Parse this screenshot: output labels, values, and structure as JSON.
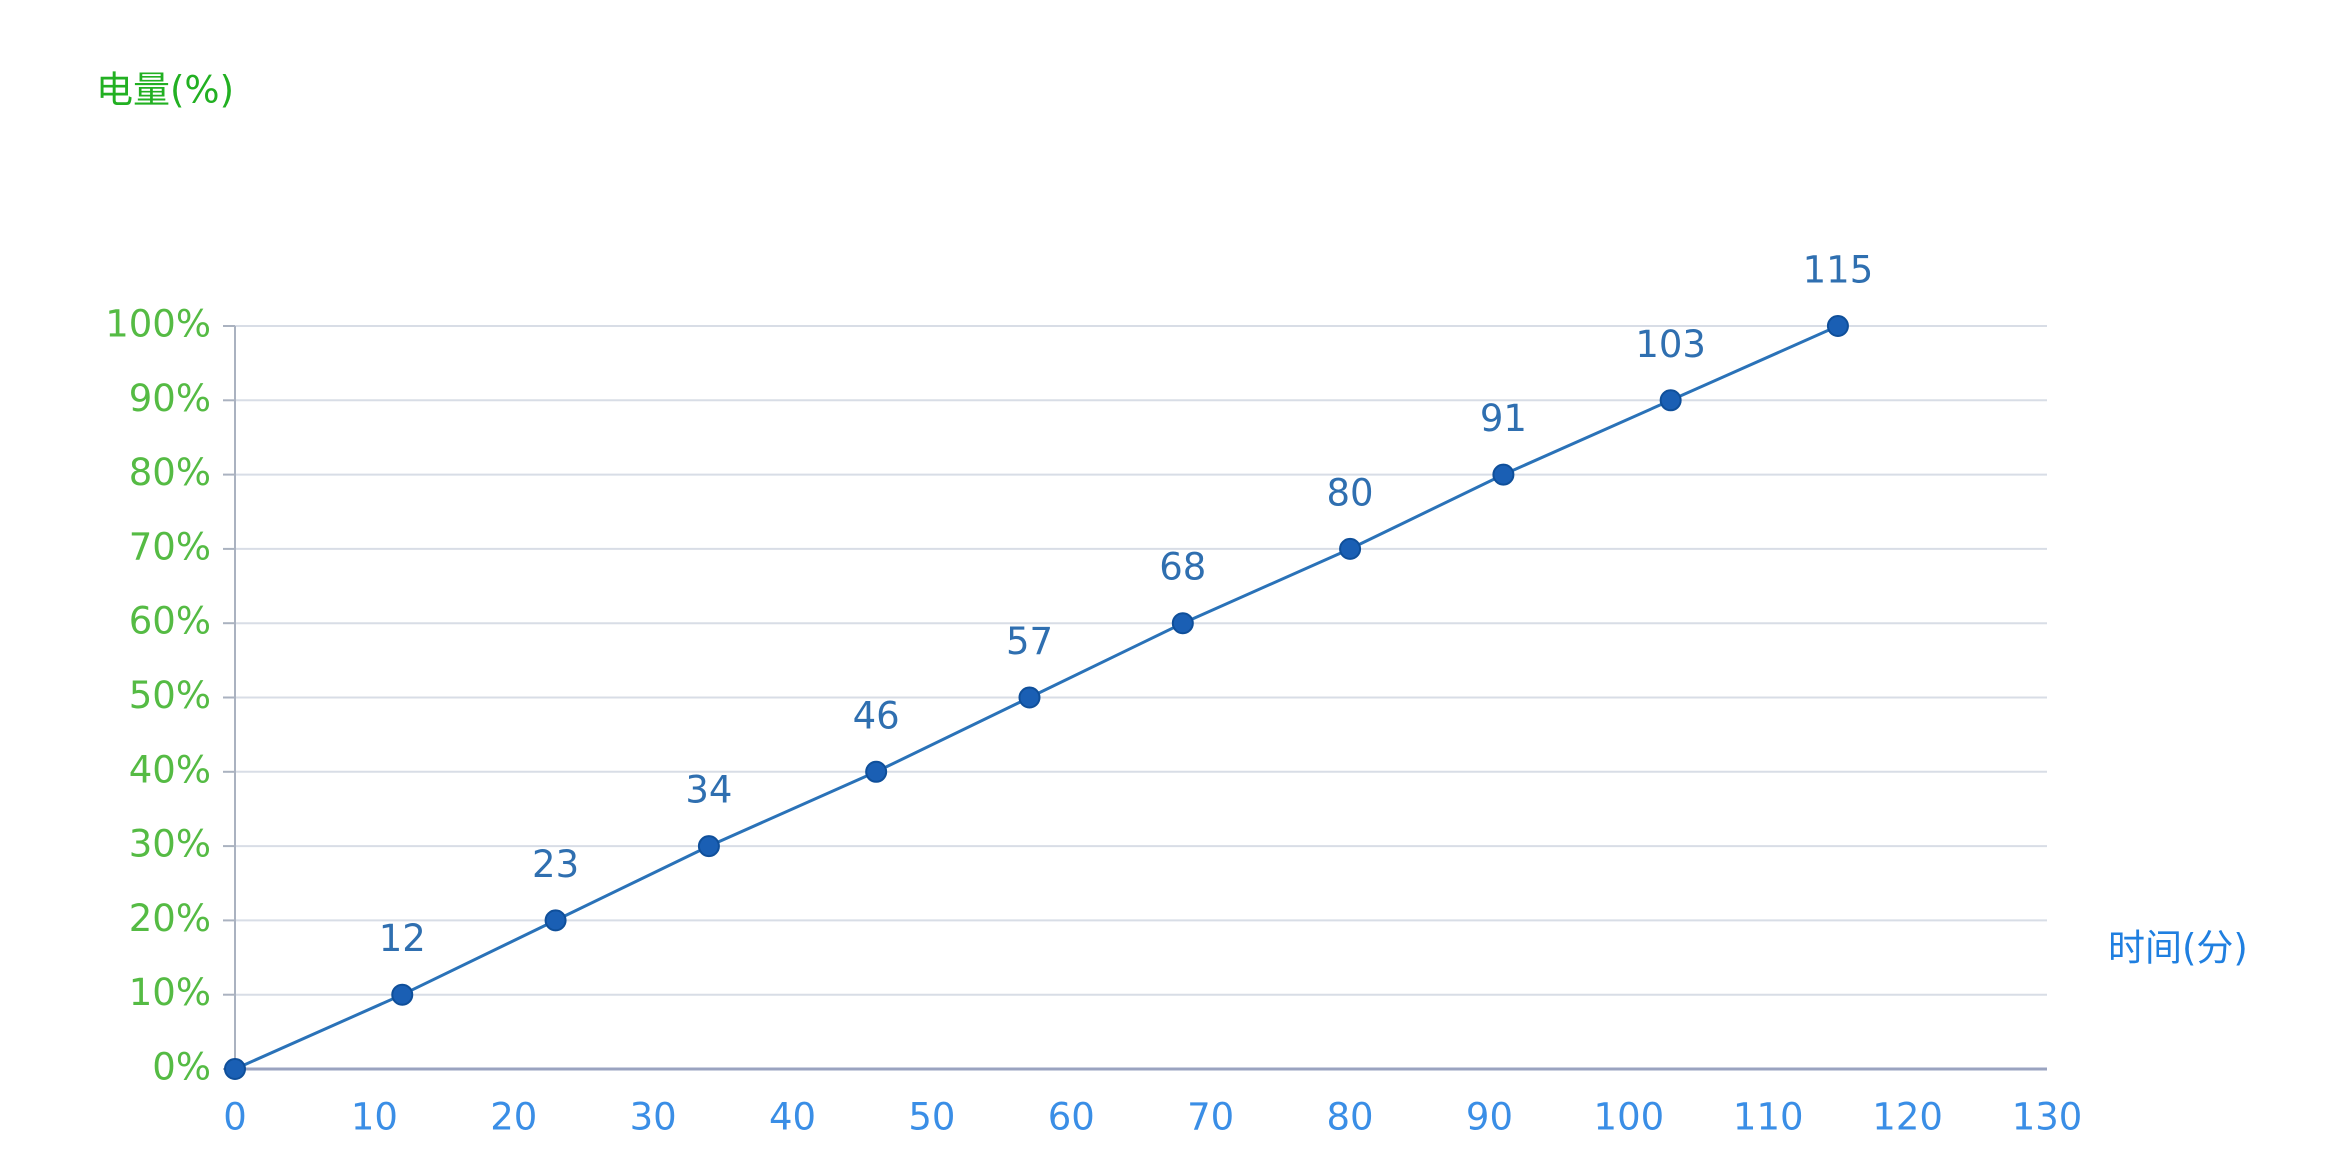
{
  "chart_data": {
    "type": "line",
    "y_axis_title": "电量(%)",
    "x_axis_title": "时间(分)",
    "x": [
      0,
      12,
      23,
      34,
      46,
      57,
      68,
      80,
      91,
      103,
      115
    ],
    "series": [
      {
        "color": "#2a72b8",
        "marker_color": "#1a5fb4",
        "values": [
          0,
          10,
          20,
          30,
          40,
          50,
          60,
          70,
          80,
          90,
          100
        ]
      }
    ],
    "data_labels": [
      null,
      12,
      23,
      34,
      46,
      57,
      68,
      80,
      91,
      103,
      115
    ],
    "xlim": [
      0,
      130
    ],
    "xticks": [
      0,
      10,
      20,
      30,
      40,
      50,
      60,
      70,
      80,
      90,
      100,
      110,
      120,
      130
    ],
    "ylim": [
      0,
      100
    ],
    "yticks": [
      {
        "value": 0,
        "label": "0%"
      },
      {
        "value": 10,
        "label": "10%"
      },
      {
        "value": 20,
        "label": "20%"
      },
      {
        "value": 30,
        "label": "30%"
      },
      {
        "value": 40,
        "label": "40%"
      },
      {
        "value": 50,
        "label": "50%"
      },
      {
        "value": 60,
        "label": "60%"
      },
      {
        "value": 70,
        "label": "70%"
      },
      {
        "value": 80,
        "label": "80%"
      },
      {
        "value": 90,
        "label": "90%"
      },
      {
        "value": 100,
        "label": "100%"
      }
    ],
    "grid": true
  }
}
